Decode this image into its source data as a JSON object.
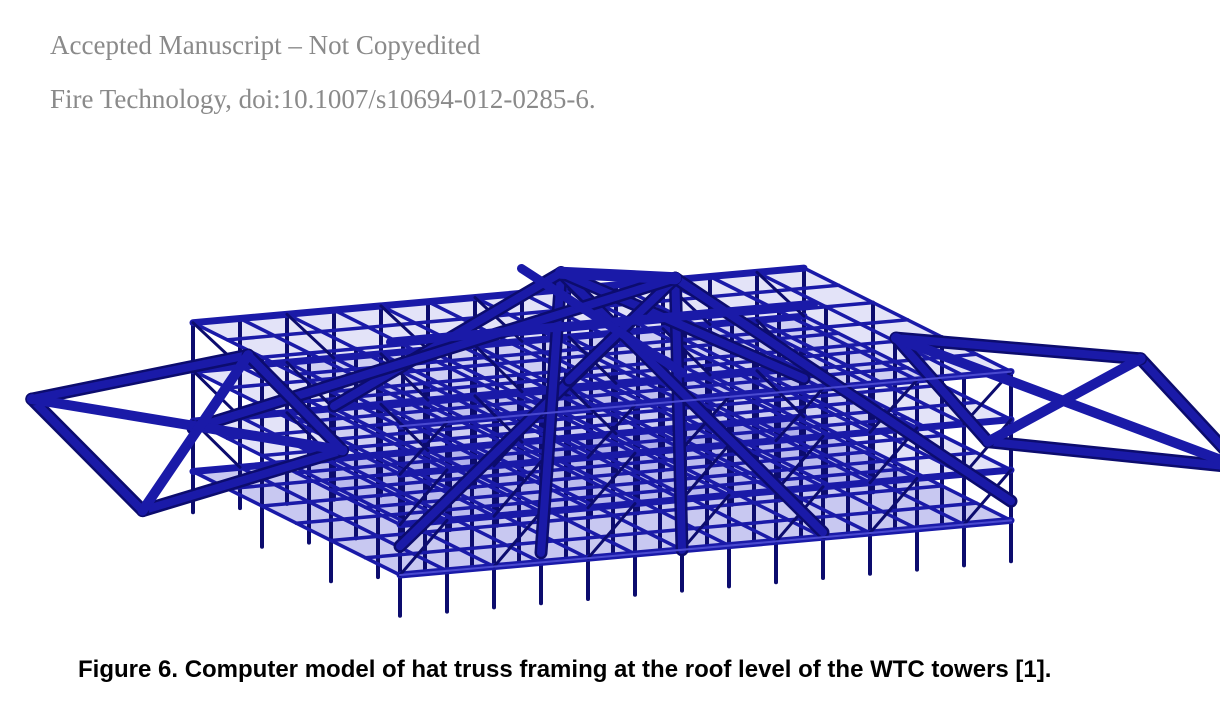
{
  "header": {
    "line1": "Accepted Manuscript – Not Copyedited",
    "line2": "Fire Technology, doi:10.1007/s10694-012-0285-6."
  },
  "figure": {
    "caption": "Figure 6. Computer model of hat truss framing at the roof level of the WTC towers [1].",
    "colors": {
      "member": "#1a1aa8",
      "member_dark": "#0c0c6e",
      "member_light": "#4a4ad0",
      "deck": "#9a9ae6"
    }
  }
}
